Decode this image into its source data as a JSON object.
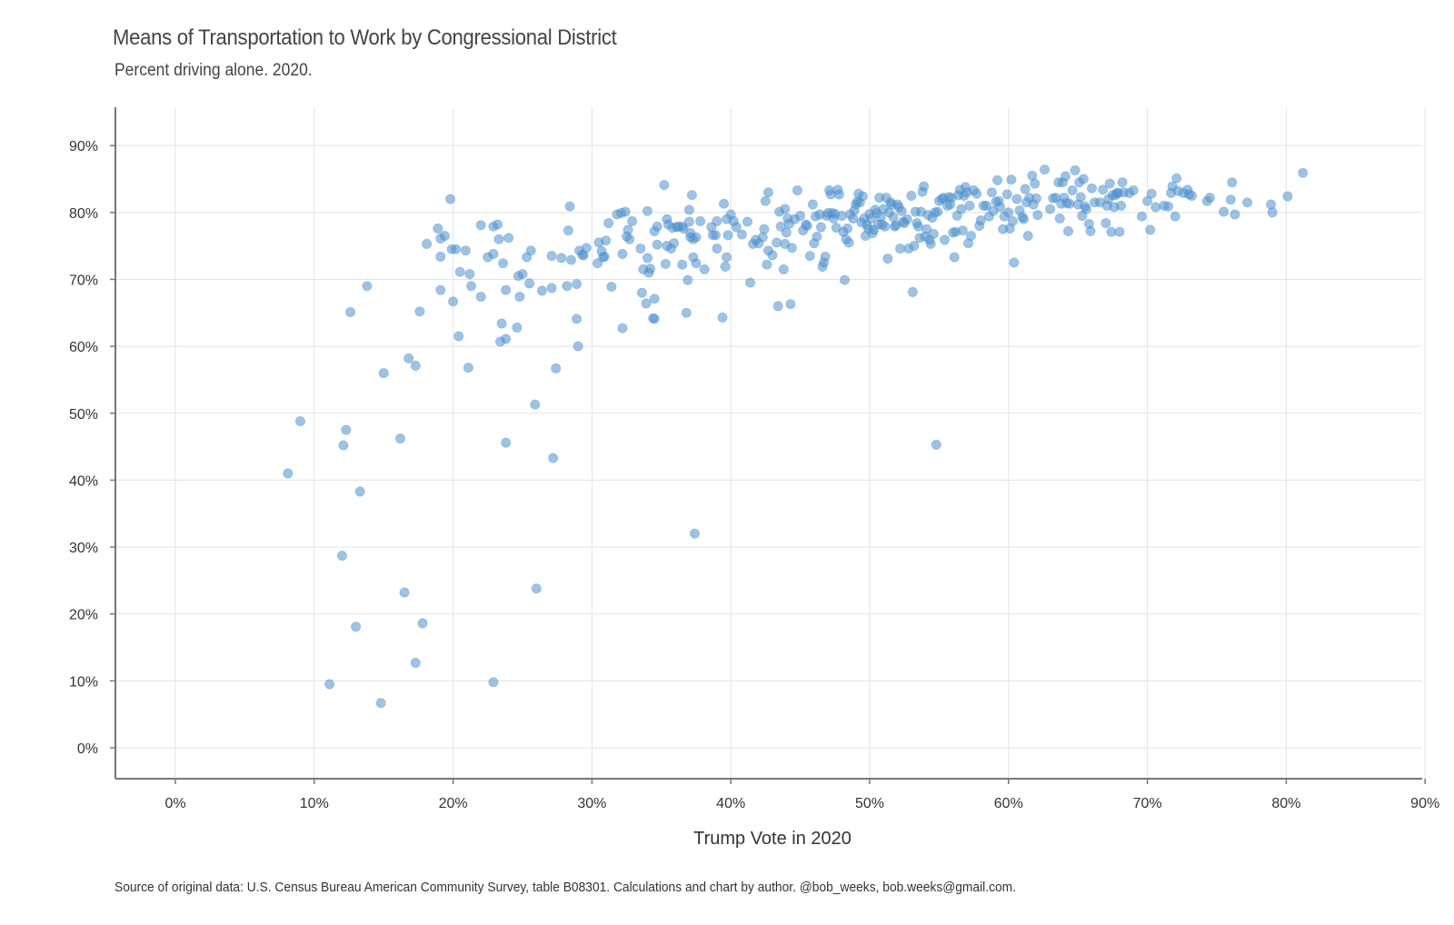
{
  "chart_data": {
    "type": "scatter",
    "title": "Means of Transportation to Work by Congressional District",
    "subtitle": "Percent driving alone. 2020.",
    "xlabel": "Trump Vote in 2020",
    "ylabel": "",
    "caption": "Source of original data: U.S. Census Bureau American Community Survey, table B08301. Calculations and chart by author. @bob_weeks, bob.weeks@gmail.com.",
    "xlim": [
      -0.05,
      0.9
    ],
    "ylim": [
      -0.045,
      0.955
    ],
    "x_ticks": [
      0,
      0.1,
      0.2,
      0.3,
      0.4,
      0.5,
      0.6,
      0.7,
      0.8,
      0.9
    ],
    "x_tick_labels": [
      "0%",
      "10%",
      "20%",
      "30%",
      "40%",
      "50%",
      "60%",
      "70%",
      "80%",
      "90%"
    ],
    "y_ticks": [
      0,
      0.1,
      0.2,
      0.3,
      0.4,
      0.5,
      0.6,
      0.7,
      0.8,
      0.9
    ],
    "y_tick_labels": [
      "0%",
      "10%",
      "20%",
      "30%",
      "40%",
      "50%",
      "60%",
      "70%",
      "80%",
      "90%"
    ],
    "grid": true,
    "point_color": "#4d8fcc",
    "points": [
      [
        0.081,
        0.41
      ],
      [
        0.09,
        0.488
      ],
      [
        0.111,
        0.095
      ],
      [
        0.12,
        0.287
      ],
      [
        0.121,
        0.452
      ],
      [
        0.123,
        0.475
      ],
      [
        0.126,
        0.651
      ],
      [
        0.13,
        0.181
      ],
      [
        0.133,
        0.383
      ],
      [
        0.138,
        0.69
      ],
      [
        0.148,
        0.067
      ],
      [
        0.15,
        0.56
      ],
      [
        0.162,
        0.462
      ],
      [
        0.165,
        0.232
      ],
      [
        0.168,
        0.582
      ],
      [
        0.173,
        0.571
      ],
      [
        0.173,
        0.127
      ],
      [
        0.176,
        0.652
      ],
      [
        0.178,
        0.186
      ],
      [
        0.181,
        0.753
      ],
      [
        0.189,
        0.776
      ],
      [
        0.191,
        0.761
      ],
      [
        0.191,
        0.734
      ],
      [
        0.191,
        0.684
      ],
      [
        0.194,
        0.765
      ],
      [
        0.198,
        0.82
      ],
      [
        0.199,
        0.745
      ],
      [
        0.2,
        0.667
      ],
      [
        0.202,
        0.745
      ],
      [
        0.204,
        0.615
      ],
      [
        0.205,
        0.711
      ],
      [
        0.209,
        0.743
      ],
      [
        0.211,
        0.568
      ],
      [
        0.212,
        0.708
      ],
      [
        0.213,
        0.69
      ],
      [
        0.22,
        0.781
      ],
      [
        0.22,
        0.674
      ],
      [
        0.225,
        0.733
      ],
      [
        0.229,
        0.779
      ],
      [
        0.229,
        0.738
      ],
      [
        0.229,
        0.098
      ],
      [
        0.232,
        0.782
      ],
      [
        0.233,
        0.76
      ],
      [
        0.234,
        0.607
      ],
      [
        0.235,
        0.634
      ],
      [
        0.236,
        0.724
      ],
      [
        0.238,
        0.456
      ],
      [
        0.238,
        0.684
      ],
      [
        0.238,
        0.611
      ],
      [
        0.24,
        0.762
      ],
      [
        0.246,
        0.628
      ],
      [
        0.247,
        0.705
      ],
      [
        0.248,
        0.674
      ],
      [
        0.25,
        0.708
      ],
      [
        0.253,
        0.733
      ],
      [
        0.255,
        0.694
      ],
      [
        0.256,
        0.743
      ],
      [
        0.259,
        0.513
      ],
      [
        0.26,
        0.238
      ],
      [
        0.264,
        0.683
      ],
      [
        0.271,
        0.735
      ],
      [
        0.271,
        0.687
      ],
      [
        0.272,
        0.433
      ],
      [
        0.274,
        0.567
      ],
      [
        0.278,
        0.732
      ],
      [
        0.282,
        0.69
      ],
      [
        0.283,
        0.773
      ],
      [
        0.284,
        0.809
      ],
      [
        0.285,
        0.729
      ],
      [
        0.289,
        0.641
      ],
      [
        0.289,
        0.693
      ],
      [
        0.29,
        0.6
      ],
      [
        0.291,
        0.743
      ],
      [
        0.293,
        0.737
      ],
      [
        0.294,
        0.736
      ],
      [
        0.296,
        0.747
      ],
      [
        0.304,
        0.724
      ],
      [
        0.305,
        0.755
      ],
      [
        0.307,
        0.742
      ],
      [
        0.308,
        0.733
      ],
      [
        0.309,
        0.734
      ],
      [
        0.31,
        0.758
      ],
      [
        0.312,
        0.784
      ],
      [
        0.314,
        0.689
      ],
      [
        0.318,
        0.797
      ],
      [
        0.321,
        0.799
      ],
      [
        0.322,
        0.627
      ],
      [
        0.322,
        0.738
      ],
      [
        0.324,
        0.801
      ],
      [
        0.325,
        0.764
      ],
      [
        0.326,
        0.774
      ],
      [
        0.327,
        0.76
      ],
      [
        0.329,
        0.787
      ],
      [
        0.335,
        0.746
      ],
      [
        0.336,
        0.68
      ],
      [
        0.337,
        0.715
      ],
      [
        0.339,
        0.664
      ],
      [
        0.34,
        0.802
      ],
      [
        0.34,
        0.732
      ],
      [
        0.341,
        0.71
      ],
      [
        0.342,
        0.716
      ],
      [
        0.344,
        0.642
      ],
      [
        0.345,
        0.641
      ],
      [
        0.345,
        0.671
      ],
      [
        0.345,
        0.772
      ],
      [
        0.347,
        0.779
      ],
      [
        0.347,
        0.752
      ],
      [
        0.352,
        0.841
      ],
      [
        0.353,
        0.723
      ],
      [
        0.354,
        0.79
      ],
      [
        0.354,
        0.75
      ],
      [
        0.355,
        0.782
      ],
      [
        0.357,
        0.746
      ],
      [
        0.358,
        0.777
      ],
      [
        0.359,
        0.754
      ],
      [
        0.361,
        0.778
      ],
      [
        0.362,
        0.779
      ],
      [
        0.365,
        0.722
      ],
      [
        0.365,
        0.779
      ],
      [
        0.366,
        0.776
      ],
      [
        0.368,
        0.65
      ],
      [
        0.369,
        0.699
      ],
      [
        0.37,
        0.804
      ],
      [
        0.37,
        0.786
      ],
      [
        0.371,
        0.763
      ],
      [
        0.371,
        0.769
      ],
      [
        0.372,
        0.826
      ],
      [
        0.373,
        0.76
      ],
      [
        0.373,
        0.733
      ],
      [
        0.374,
        0.32
      ],
      [
        0.375,
        0.763
      ],
      [
        0.375,
        0.724
      ],
      [
        0.378,
        0.787
      ],
      [
        0.381,
        0.715
      ],
      [
        0.386,
        0.778
      ],
      [
        0.387,
        0.766
      ],
      [
        0.389,
        0.766
      ],
      [
        0.39,
        0.787
      ],
      [
        0.39,
        0.746
      ],
      [
        0.394,
        0.643
      ],
      [
        0.395,
        0.813
      ],
      [
        0.396,
        0.719
      ],
      [
        0.397,
        0.733
      ],
      [
        0.397,
        0.79
      ],
      [
        0.398,
        0.766
      ],
      [
        0.4,
        0.797
      ],
      [
        0.402,
        0.787
      ],
      [
        0.404,
        0.778
      ],
      [
        0.408,
        0.767
      ],
      [
        0.412,
        0.786
      ],
      [
        0.414,
        0.695
      ],
      [
        0.416,
        0.753
      ],
      [
        0.418,
        0.759
      ],
      [
        0.42,
        0.754
      ],
      [
        0.423,
        0.763
      ],
      [
        0.424,
        0.775
      ],
      [
        0.425,
        0.817
      ],
      [
        0.426,
        0.722
      ],
      [
        0.427,
        0.743
      ],
      [
        0.427,
        0.83
      ],
      [
        0.43,
        0.736
      ],
      [
        0.433,
        0.755
      ],
      [
        0.434,
        0.66
      ],
      [
        0.435,
        0.801
      ],
      [
        0.436,
        0.779
      ],
      [
        0.438,
        0.715
      ],
      [
        0.439,
        0.805
      ],
      [
        0.439,
        0.753
      ],
      [
        0.44,
        0.77
      ],
      [
        0.441,
        0.791
      ],
      [
        0.442,
        0.783
      ],
      [
        0.443,
        0.663
      ],
      [
        0.444,
        0.747
      ],
      [
        0.446,
        0.79
      ],
      [
        0.448,
        0.833
      ],
      [
        0.45,
        0.795
      ],
      [
        0.452,
        0.773
      ],
      [
        0.454,
        0.782
      ],
      [
        0.455,
        0.78
      ],
      [
        0.457,
        0.735
      ],
      [
        0.459,
        0.812
      ],
      [
        0.46,
        0.754
      ],
      [
        0.461,
        0.794
      ],
      [
        0.462,
        0.764
      ],
      [
        0.464,
        0.797
      ],
      [
        0.465,
        0.778
      ],
      [
        0.466,
        0.719
      ],
      [
        0.467,
        0.725
      ],
      [
        0.468,
        0.734
      ],
      [
        0.469,
        0.795
      ],
      [
        0.47,
        0.799
      ],
      [
        0.471,
        0.833
      ],
      [
        0.472,
        0.827
      ],
      [
        0.473,
        0.799
      ],
      [
        0.474,
        0.791
      ],
      [
        0.475,
        0.798
      ],
      [
        0.476,
        0.777
      ],
      [
        0.477,
        0.834
      ],
      [
        0.478,
        0.827
      ],
      [
        0.48,
        0.795
      ],
      [
        0.481,
        0.771
      ],
      [
        0.482,
        0.699
      ],
      [
        0.483,
        0.76
      ],
      [
        0.484,
        0.776
      ],
      [
        0.485,
        0.755
      ],
      [
        0.486,
        0.797
      ],
      [
        0.488,
        0.791
      ],
      [
        0.489,
        0.803
      ],
      [
        0.49,
        0.812
      ],
      [
        0.491,
        0.816
      ],
      [
        0.492,
        0.828
      ],
      [
        0.493,
        0.815
      ],
      [
        0.494,
        0.785
      ],
      [
        0.495,
        0.824
      ],
      [
        0.496,
        0.791
      ],
      [
        0.497,
        0.765
      ],
      [
        0.498,
        0.781
      ],
      [
        0.499,
        0.776
      ],
      [
        0.5,
        0.798
      ],
      [
        0.501,
        0.791
      ],
      [
        0.502,
        0.769
      ],
      [
        0.503,
        0.774
      ],
      [
        0.504,
        0.804
      ],
      [
        0.505,
        0.799
      ],
      [
        0.506,
        0.782
      ],
      [
        0.507,
        0.822
      ],
      [
        0.508,
        0.793
      ],
      [
        0.509,
        0.782
      ],
      [
        0.51,
        0.805
      ],
      [
        0.511,
        0.779
      ],
      [
        0.512,
        0.822
      ],
      [
        0.513,
        0.731
      ],
      [
        0.514,
        0.8
      ],
      [
        0.515,
        0.815
      ],
      [
        0.516,
        0.812
      ],
      [
        0.517,
        0.793
      ],
      [
        0.518,
        0.779
      ],
      [
        0.519,
        0.781
      ],
      [
        0.52,
        0.812
      ],
      [
        0.521,
        0.808
      ],
      [
        0.522,
        0.746
      ],
      [
        0.523,
        0.802
      ],
      [
        0.524,
        0.786
      ],
      [
        0.525,
        0.784
      ],
      [
        0.527,
        0.79
      ],
      [
        0.528,
        0.746
      ],
      [
        0.53,
        0.825
      ],
      [
        0.531,
        0.681
      ],
      [
        0.532,
        0.75
      ],
      [
        0.533,
        0.801
      ],
      [
        0.534,
        0.784
      ],
      [
        0.535,
        0.779
      ],
      [
        0.536,
        0.762
      ],
      [
        0.537,
        0.801
      ],
      [
        0.538,
        0.831
      ],
      [
        0.539,
        0.839
      ],
      [
        0.54,
        0.764
      ],
      [
        0.541,
        0.775
      ],
      [
        0.542,
        0.796
      ],
      [
        0.543,
        0.759
      ],
      [
        0.544,
        0.753
      ],
      [
        0.545,
        0.792
      ],
      [
        0.546,
        0.768
      ],
      [
        0.547,
        0.8
      ],
      [
        0.548,
        0.453
      ],
      [
        0.549,
        0.801
      ],
      [
        0.55,
        0.817
      ],
      [
        0.552,
        0.82
      ],
      [
        0.553,
        0.822
      ],
      [
        0.554,
        0.759
      ],
      [
        0.556,
        0.81
      ],
      [
        0.557,
        0.823
      ],
      [
        0.558,
        0.812
      ],
      [
        0.559,
        0.822
      ],
      [
        0.56,
        0.77
      ],
      [
        0.561,
        0.733
      ],
      [
        0.562,
        0.771
      ],
      [
        0.563,
        0.795
      ],
      [
        0.564,
        0.826
      ],
      [
        0.565,
        0.834
      ],
      [
        0.566,
        0.805
      ],
      [
        0.567,
        0.773
      ],
      [
        0.568,
        0.825
      ],
      [
        0.569,
        0.838
      ],
      [
        0.57,
        0.83
      ],
      [
        0.571,
        0.754
      ],
      [
        0.572,
        0.81
      ],
      [
        0.573,
        0.765
      ],
      [
        0.575,
        0.833
      ],
      [
        0.577,
        0.828
      ],
      [
        0.579,
        0.78
      ],
      [
        0.58,
        0.788
      ],
      [
        0.582,
        0.81
      ],
      [
        0.584,
        0.81
      ],
      [
        0.586,
        0.794
      ],
      [
        0.588,
        0.83
      ],
      [
        0.589,
        0.802
      ],
      [
        0.591,
        0.816
      ],
      [
        0.592,
        0.848
      ],
      [
        0.593,
        0.817
      ],
      [
        0.594,
        0.808
      ],
      [
        0.596,
        0.775
      ],
      [
        0.597,
        0.794
      ],
      [
        0.599,
        0.827
      ],
      [
        0.6,
        0.8
      ],
      [
        0.601,
        0.776
      ],
      [
        0.602,
        0.849
      ],
      [
        0.603,
        0.787
      ],
      [
        0.604,
        0.725
      ],
      [
        0.606,
        0.82
      ],
      [
        0.608,
        0.803
      ],
      [
        0.61,
        0.793
      ],
      [
        0.611,
        0.79
      ],
      [
        0.612,
        0.835
      ],
      [
        0.613,
        0.815
      ],
      [
        0.614,
        0.765
      ],
      [
        0.615,
        0.822
      ],
      [
        0.617,
        0.855
      ],
      [
        0.618,
        0.812
      ],
      [
        0.619,
        0.843
      ],
      [
        0.62,
        0.821
      ],
      [
        0.621,
        0.796
      ],
      [
        0.626,
        0.864
      ],
      [
        0.63,
        0.805
      ],
      [
        0.632,
        0.821
      ],
      [
        0.634,
        0.822
      ],
      [
        0.636,
        0.845
      ],
      [
        0.637,
        0.791
      ],
      [
        0.638,
        0.813
      ],
      [
        0.639,
        0.845
      ],
      [
        0.64,
        0.822
      ],
      [
        0.641,
        0.854
      ],
      [
        0.642,
        0.814
      ],
      [
        0.643,
        0.772
      ],
      [
        0.644,
        0.813
      ],
      [
        0.646,
        0.833
      ],
      [
        0.648,
        0.863
      ],
      [
        0.65,
        0.812
      ],
      [
        0.651,
        0.845
      ],
      [
        0.652,
        0.823
      ],
      [
        0.653,
        0.795
      ],
      [
        0.654,
        0.85
      ],
      [
        0.655,
        0.809
      ],
      [
        0.656,
        0.805
      ],
      [
        0.658,
        0.783
      ],
      [
        0.659,
        0.772
      ],
      [
        0.66,
        0.836
      ],
      [
        0.662,
        0.815
      ],
      [
        0.666,
        0.815
      ],
      [
        0.668,
        0.834
      ],
      [
        0.67,
        0.784
      ],
      [
        0.671,
        0.81
      ],
      [
        0.672,
        0.82
      ],
      [
        0.673,
        0.843
      ],
      [
        0.674,
        0.771
      ],
      [
        0.675,
        0.826
      ],
      [
        0.676,
        0.808
      ],
      [
        0.677,
        0.826
      ],
      [
        0.678,
        0.829
      ],
      [
        0.679,
        0.829
      ],
      [
        0.68,
        0.771
      ],
      [
        0.681,
        0.81
      ],
      [
        0.682,
        0.845
      ],
      [
        0.683,
        0.83
      ],
      [
        0.687,
        0.829
      ],
      [
        0.69,
        0.833
      ],
      [
        0.696,
        0.794
      ],
      [
        0.7,
        0.817
      ],
      [
        0.702,
        0.774
      ],
      [
        0.703,
        0.828
      ],
      [
        0.706,
        0.808
      ],
      [
        0.712,
        0.81
      ],
      [
        0.715,
        0.809
      ],
      [
        0.717,
        0.829
      ],
      [
        0.718,
        0.839
      ],
      [
        0.72,
        0.794
      ],
      [
        0.721,
        0.851
      ],
      [
        0.722,
        0.832
      ],
      [
        0.726,
        0.829
      ],
      [
        0.729,
        0.834
      ],
      [
        0.73,
        0.827
      ],
      [
        0.732,
        0.825
      ],
      [
        0.743,
        0.817
      ],
      [
        0.745,
        0.822
      ],
      [
        0.755,
        0.801
      ],
      [
        0.76,
        0.819
      ],
      [
        0.761,
        0.845
      ],
      [
        0.763,
        0.797
      ],
      [
        0.772,
        0.815
      ],
      [
        0.789,
        0.812
      ],
      [
        0.79,
        0.8
      ],
      [
        0.801,
        0.824
      ],
      [
        0.812,
        0.859
      ]
    ]
  }
}
